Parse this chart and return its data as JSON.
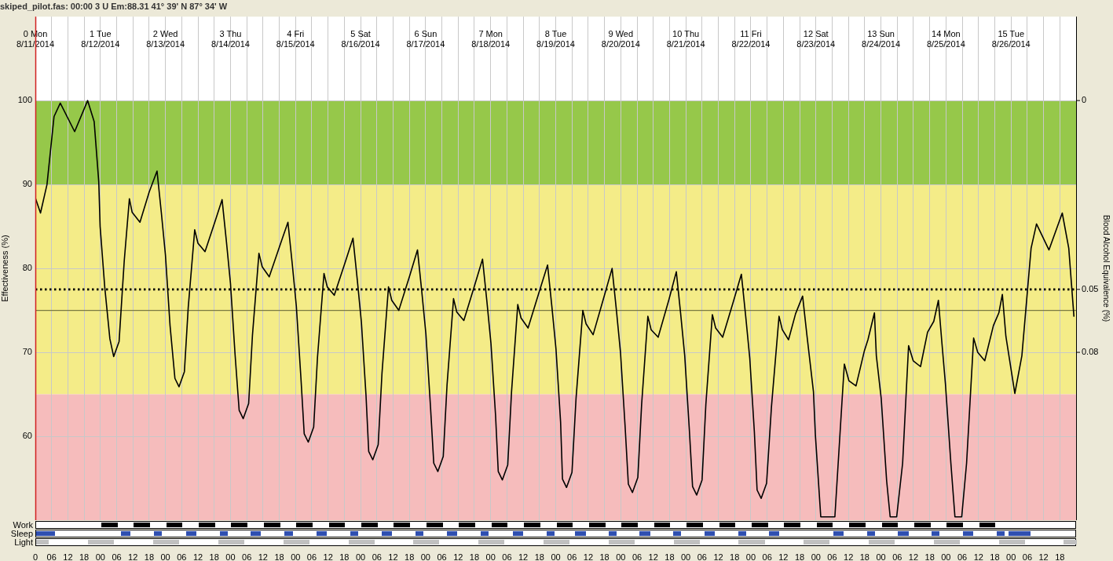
{
  "chart_data": {
    "type": "line",
    "title": "skiped_pilot.fas: 00:00 3 U Em:88.31 41° 39' N 87° 34' W",
    "ylabel": "Effectiveness (%)",
    "y2label": "Blood Alcohol Equivalence (%)",
    "series": [
      {
        "color": "#000000",
        "x": [
          "2014-08-11T00:00",
          "2014-08-11T01:54",
          "2014-08-11T04:18",
          "2014-08-11T06:54",
          "2014-08-11T09:12",
          "2014-08-11T14:30",
          "2014-08-11T19:18",
          "2014-08-11T21:42",
          "2014-08-11T23:24",
          "2014-08-11T23:54",
          "2014-08-12T01:36",
          "2014-08-12T03:30",
          "2014-08-12T04:54",
          "2014-08-12T06:54",
          "2014-08-12T08:48",
          "2014-08-12T10:42",
          "2014-08-12T11:42",
          "2014-08-12T14:36",
          "2014-08-12T18:00",
          "2014-08-12T20:54",
          "2014-08-12T22:30",
          "2014-08-13T00:00",
          "2014-08-13T01:42",
          "2014-08-13T03:30",
          "2014-08-13T05:00",
          "2014-08-13T07:00",
          "2014-08-13T08:24",
          "2014-08-13T10:48",
          "2014-08-13T12:00",
          "2014-08-13T14:36",
          "2014-08-13T18:18",
          "2014-08-13T20:54",
          "2014-08-13T22:30",
          "2014-08-14T00:00",
          "2014-08-14T01:42",
          "2014-08-14T03:12",
          "2014-08-14T04:42",
          "2014-08-14T06:42",
          "2014-08-14T08:06",
          "2014-08-14T10:30",
          "2014-08-14T11:42",
          "2014-08-14T14:18",
          "2014-08-14T18:18",
          "2014-08-14T21:12",
          "2014-08-14T22:48",
          "2014-08-15T00:18",
          "2014-08-15T02:00",
          "2014-08-15T03:12",
          "2014-08-15T04:42",
          "2014-08-15T06:42",
          "2014-08-15T08:06",
          "2014-08-15T10:30",
          "2014-08-15T11:42",
          "2014-08-15T14:18",
          "2014-08-15T18:18",
          "2014-08-15T21:12",
          "2014-08-15T22:48",
          "2014-08-16T00:18",
          "2014-08-16T02:00",
          "2014-08-16T03:00",
          "2014-08-16T04:30",
          "2014-08-16T06:30",
          "2014-08-16T07:54",
          "2014-08-16T10:18",
          "2014-08-16T11:30",
          "2014-08-16T14:06",
          "2014-08-16T18:06",
          "2014-08-16T21:00",
          "2014-08-16T22:36",
          "2014-08-17T00:06",
          "2014-08-17T01:48",
          "2014-08-17T03:00",
          "2014-08-17T04:30",
          "2014-08-17T06:30",
          "2014-08-17T07:54",
          "2014-08-17T10:18",
          "2014-08-17T11:30",
          "2014-08-17T14:06",
          "2014-08-17T18:06",
          "2014-08-17T21:00",
          "2014-08-17T22:36",
          "2014-08-18T00:06",
          "2014-08-18T01:48",
          "2014-08-18T02:48",
          "2014-08-18T04:18",
          "2014-08-18T06:18",
          "2014-08-18T07:42",
          "2014-08-18T10:00",
          "2014-08-18T11:12",
          "2014-08-18T13:48",
          "2014-08-18T17:54",
          "2014-08-18T21:00",
          "2014-08-18T22:36",
          "2014-08-19T00:06",
          "2014-08-19T01:48",
          "2014-08-19T02:30",
          "2014-08-19T04:00",
          "2014-08-19T06:00",
          "2014-08-19T07:30",
          "2014-08-19T10:00",
          "2014-08-19T11:12",
          "2014-08-19T13:48",
          "2014-08-19T17:48",
          "2014-08-19T20:48",
          "2014-08-19T22:24",
          "2014-08-19T23:54",
          "2014-08-20T01:36",
          "2014-08-20T02:48",
          "2014-08-20T04:18",
          "2014-08-20T06:18",
          "2014-08-20T07:42",
          "2014-08-20T10:00",
          "2014-08-20T11:12",
          "2014-08-20T13:48",
          "2014-08-20T17:42",
          "2014-08-20T20:30",
          "2014-08-20T22:06",
          "2014-08-20T23:36",
          "2014-08-21T01:18",
          "2014-08-21T02:30",
          "2014-08-21T04:00",
          "2014-08-21T06:00",
          "2014-08-21T07:24",
          "2014-08-21T09:48",
          "2014-08-21T11:00",
          "2014-08-21T13:36",
          "2014-08-21T17:36",
          "2014-08-21T20:30",
          "2014-08-21T22:06",
          "2014-08-21T23:36",
          "2014-08-22T01:18",
          "2014-08-22T02:18",
          "2014-08-22T03:48",
          "2014-08-22T05:48",
          "2014-08-22T07:36",
          "2014-08-22T10:24",
          "2014-08-22T11:36",
          "2014-08-22T13:54",
          "2014-08-22T16:30",
          "2014-08-22T19:06",
          "2014-08-22T20:42",
          "2014-08-22T23:06",
          "2014-08-22T23:48",
          "2014-08-23T01:48",
          "2014-08-23T06:06",
          "2014-08-23T07:00",
          "2014-08-23T09:36",
          "2014-08-23T10:30",
          "2014-08-23T12:12",
          "2014-08-23T14:48",
          "2014-08-23T17:54",
          "2014-08-23T19:12",
          "2014-08-23T21:36",
          "2014-08-23T22:18",
          "2014-08-24T00:06",
          "2014-08-24T02:06",
          "2014-08-24T03:24",
          "2014-08-24T05:48",
          "2014-08-24T08:00",
          "2014-08-24T10:12",
          "2014-08-24T11:54",
          "2014-08-24T14:36",
          "2014-08-24T17:12",
          "2014-08-24T19:30",
          "2014-08-24T21:12",
          "2014-08-24T22:30",
          "2014-08-24T23:48",
          "2014-08-25T01:48",
          "2014-08-25T03:18",
          "2014-08-25T05:48",
          "2014-08-25T07:36",
          "2014-08-25T10:12",
          "2014-08-25T11:42",
          "2014-08-25T14:18",
          "2014-08-25T17:30",
          "2014-08-25T19:30",
          "2014-08-25T20:48",
          "2014-08-25T22:06",
          "2014-08-26T01:24",
          "2014-08-26T04:00",
          "2014-08-26T07:24",
          "2014-08-26T09:24",
          "2014-08-26T14:00",
          "2014-08-26T18:54",
          "2014-08-26T21:18",
          "2014-08-26T23:12"
        ],
        "values": [
          88.4,
          86.6,
          90,
          98.1,
          99.7,
          96.3,
          100,
          97.5,
          90.3,
          85.0,
          77.8,
          71.6,
          69.5,
          71.3,
          80.9,
          88.3,
          86.7,
          85.5,
          89.1,
          91.6,
          86.6,
          81.6,
          73.2,
          66.9,
          65.9,
          67.7,
          75.3,
          84.6,
          83.0,
          82.0,
          85.6,
          88.2,
          83.2,
          78.2,
          69.7,
          63.1,
          62.1,
          63.9,
          72.0,
          81.8,
          80.2,
          79.0,
          82.8,
          85.5,
          80.5,
          75.5,
          66.9,
          60.3,
          59.3,
          61.1,
          69.4,
          79.4,
          77.8,
          76.8,
          80.7,
          83.6,
          78.6,
          73.6,
          64.9,
          58.2,
          57.2,
          59.0,
          67.5,
          77.8,
          76.2,
          75.0,
          79.1,
          82.2,
          77.2,
          72.2,
          63.5,
          56.8,
          55.8,
          57.6,
          66.1,
          76.4,
          74.8,
          73.8,
          78.0,
          81.1,
          76.1,
          71.1,
          62.5,
          55.8,
          54.8,
          56.6,
          65.3,
          75.7,
          74.1,
          72.9,
          77.2,
          80.4,
          75.4,
          70.4,
          61.7,
          54.9,
          53.9,
          55.7,
          64.5,
          75.0,
          73.4,
          72.1,
          76.6,
          80.0,
          75.0,
          70.0,
          61.2,
          54.3,
          53.3,
          55.1,
          63.8,
          74.3,
          72.7,
          71.8,
          76.2,
          79.6,
          74.6,
          69.6,
          60.8,
          54.0,
          53.0,
          54.8,
          63.8,
          74.5,
          72.9,
          71.8,
          76.1,
          79.3,
          74.3,
          69.3,
          60.5,
          53.6,
          52.6,
          54.4,
          63.5,
          74.3,
          72.7,
          71.5,
          74.6,
          76.7,
          72.0,
          65.3,
          60.2,
          50.4,
          50.4,
          50.4,
          64.0,
          68.6,
          66.6,
          66.0,
          70.2,
          71.5,
          74.7,
          69.6,
          64.5,
          54.7,
          50.4,
          50.4,
          56.8,
          70.8,
          69.0,
          68.3,
          72.4,
          73.7,
          76.2,
          71.1,
          66.2,
          56.8,
          50.4,
          50.4,
          56.8,
          71.7,
          70.0,
          69.0,
          73.2,
          74.7,
          76.9,
          71.9,
          65.1,
          69.6,
          82.4,
          85.3,
          82.2,
          86.6,
          82.4,
          74.3
        ]
      }
    ],
    "xlim": [
      "2014-08-11T00:00",
      "2014-08-27T00:00"
    ],
    "xticks": [
      {
        "value": "2014-08-11T00:00",
        "label": "0"
      },
      {
        "value": "2014-08-11T06:00",
        "label": "06"
      },
      {
        "value": "2014-08-11T12:00",
        "label": "12"
      },
      {
        "value": "2014-08-11T18:00",
        "label": "18"
      },
      {
        "value": "2014-08-12T00:00",
        "label": "00"
      },
      {
        "value": "2014-08-12T06:00",
        "label": "06"
      },
      {
        "value": "2014-08-12T12:00",
        "label": "12"
      },
      {
        "value": "2014-08-12T18:00",
        "label": "18"
      },
      {
        "value": "2014-08-13T00:00",
        "label": "00"
      },
      {
        "value": "2014-08-13T06:00",
        "label": "06"
      },
      {
        "value": "2014-08-13T12:00",
        "label": "12"
      },
      {
        "value": "2014-08-13T18:00",
        "label": "18"
      },
      {
        "value": "2014-08-14T00:00",
        "label": "00"
      },
      {
        "value": "2014-08-14T06:00",
        "label": "06"
      },
      {
        "value": "2014-08-14T12:00",
        "label": "12"
      },
      {
        "value": "2014-08-14T18:00",
        "label": "18"
      },
      {
        "value": "2014-08-15T00:00",
        "label": "00"
      },
      {
        "value": "2014-08-15T06:00",
        "label": "06"
      },
      {
        "value": "2014-08-15T12:00",
        "label": "12"
      },
      {
        "value": "2014-08-15T18:00",
        "label": "18"
      },
      {
        "value": "2014-08-16T00:00",
        "label": "00"
      },
      {
        "value": "2014-08-16T06:00",
        "label": "06"
      },
      {
        "value": "2014-08-16T12:00",
        "label": "12"
      },
      {
        "value": "2014-08-16T18:00",
        "label": "18"
      },
      {
        "value": "2014-08-17T00:00",
        "label": "00"
      },
      {
        "value": "2014-08-17T06:00",
        "label": "06"
      },
      {
        "value": "2014-08-17T12:00",
        "label": "12"
      },
      {
        "value": "2014-08-17T18:00",
        "label": "18"
      },
      {
        "value": "2014-08-18T00:00",
        "label": "00"
      },
      {
        "value": "2014-08-18T06:00",
        "label": "06"
      },
      {
        "value": "2014-08-18T12:00",
        "label": "12"
      },
      {
        "value": "2014-08-18T18:00",
        "label": "18"
      },
      {
        "value": "2014-08-19T00:00",
        "label": "00"
      },
      {
        "value": "2014-08-19T06:00",
        "label": "06"
      },
      {
        "value": "2014-08-19T12:00",
        "label": "12"
      },
      {
        "value": "2014-08-19T18:00",
        "label": "18"
      },
      {
        "value": "2014-08-20T00:00",
        "label": "00"
      },
      {
        "value": "2014-08-20T06:00",
        "label": "06"
      },
      {
        "value": "2014-08-20T12:00",
        "label": "12"
      },
      {
        "value": "2014-08-20T18:00",
        "label": "18"
      },
      {
        "value": "2014-08-21T00:00",
        "label": "00"
      },
      {
        "value": "2014-08-21T06:00",
        "label": "06"
      },
      {
        "value": "2014-08-21T12:00",
        "label": "12"
      },
      {
        "value": "2014-08-21T18:00",
        "label": "18"
      },
      {
        "value": "2014-08-22T00:00",
        "label": "00"
      },
      {
        "value": "2014-08-22T06:00",
        "label": "06"
      },
      {
        "value": "2014-08-22T12:00",
        "label": "12"
      },
      {
        "value": "2014-08-22T18:00",
        "label": "18"
      },
      {
        "value": "2014-08-23T00:00",
        "label": "00"
      },
      {
        "value": "2014-08-23T06:00",
        "label": "06"
      },
      {
        "value": "2014-08-23T12:00",
        "label": "12"
      },
      {
        "value": "2014-08-23T18:00",
        "label": "18"
      },
      {
        "value": "2014-08-24T00:00",
        "label": "00"
      },
      {
        "value": "2014-08-24T06:00",
        "label": "06"
      },
      {
        "value": "2014-08-24T12:00",
        "label": "12"
      },
      {
        "value": "2014-08-24T18:00",
        "label": "18"
      },
      {
        "value": "2014-08-25T00:00",
        "label": "00"
      },
      {
        "value": "2014-08-25T06:00",
        "label": "06"
      },
      {
        "value": "2014-08-25T12:00",
        "label": "12"
      },
      {
        "value": "2014-08-25T18:00",
        "label": "18"
      },
      {
        "value": "2014-08-26T00:00",
        "label": "00"
      },
      {
        "value": "2014-08-26T06:00",
        "label": "06"
      },
      {
        "value": "2014-08-26T12:00",
        "label": "12"
      },
      {
        "value": "2014-08-26T18:00",
        "label": "18"
      }
    ],
    "x2lim": [
      "2014-08-11T00:00",
      "2014-08-27T00:00"
    ],
    "x2ticks": [
      {
        "value": "2014-08-11",
        "label": "0 Mon\n8/11/2014"
      },
      {
        "value": "2014-08-12",
        "label": "1 Tue\n8/12/2014"
      },
      {
        "value": "2014-08-13",
        "label": "2 Wed\n8/13/2014"
      },
      {
        "value": "2014-08-14",
        "label": "3 Thu\n8/14/2014"
      },
      {
        "value": "2014-08-15",
        "label": "4 Fri\n8/15/2014"
      },
      {
        "value": "2014-08-16",
        "label": "5 Sat\n8/16/2014"
      },
      {
        "value": "2014-08-17",
        "label": "6 Sun\n8/17/2014"
      },
      {
        "value": "2014-08-18",
        "label": "7 Mon\n8/18/2014"
      },
      {
        "value": "2014-08-19",
        "label": "8 Tue\n8/19/2014"
      },
      {
        "value": "2014-08-20",
        "label": "9 Wed\n8/20/2014"
      },
      {
        "value": "2014-08-21",
        "label": "10 Thu\n8/21/2014"
      },
      {
        "value": "2014-08-22",
        "label": "11 Fri\n8/22/2014"
      },
      {
        "value": "2014-08-23",
        "label": "12 Sat\n8/23/2014"
      },
      {
        "value": "2014-08-24",
        "label": "13 Sun\n8/24/2014"
      },
      {
        "value": "2014-08-25",
        "label": "14 Mon\n8/25/2014"
      },
      {
        "value": "2014-08-26",
        "label": "15 Tue\n8/26/2014"
      }
    ],
    "ylim": [
      50,
      110
    ],
    "yticks": [
      60,
      70,
      80,
      90,
      100
    ],
    "grid": true,
    "legend": false,
    "marker": "none",
    "annotations": [
      "Work",
      "Sleep",
      "Light",
      {
        "text": "0",
        "x": "2014-08-27T00:00",
        "y": 100
      },
      {
        "text": "0.05",
        "x": "2014-08-27T00:00",
        "y": 77.5
      },
      {
        "text": "0.08",
        "x": "2014-08-27T00:00",
        "y": 70
      }
    ],
    "ref_lines": [
      {
        "axis": "y",
        "value": 77.5,
        "color": "#000000",
        "line_style": "dotted"
      },
      {
        "axis": "y",
        "value": 75,
        "color": "#7a7a40",
        "line_style": "solid"
      }
    ],
    "bands": [
      {
        "axis": "y",
        "from": 90,
        "to": 100,
        "color": "#96c84a"
      },
      {
        "axis": "y",
        "from": 65,
        "to": 90,
        "color": "#f4ec88"
      },
      {
        "axis": "y",
        "from": 50,
        "to": 65,
        "color": "#f6bcbc"
      }
    ]
  }
}
